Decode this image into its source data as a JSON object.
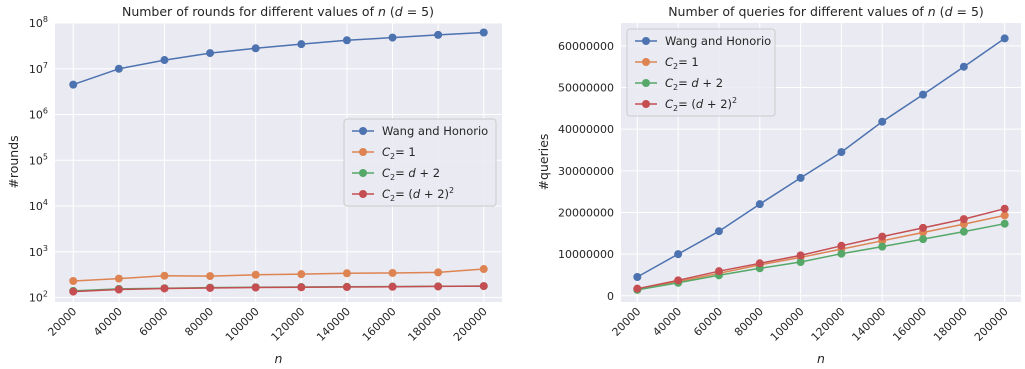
{
  "chart_data": [
    {
      "type": "line",
      "title": "Number of rounds for different values of n (d = 5)",
      "xlabel": "n",
      "ylabel": "#rounds",
      "yscale": "log",
      "ylim": [
        80,
        100000000
      ],
      "xlim": [
        12000,
        208000
      ],
      "x": [
        20000,
        40000,
        60000,
        80000,
        100000,
        120000,
        140000,
        160000,
        180000,
        200000
      ],
      "x_tick_labels": [
        "20000",
        "40000",
        "60000",
        "80000",
        "100000",
        "120000",
        "140000",
        "160000",
        "180000",
        "200000"
      ],
      "y_ticks": [
        {
          "value": 100,
          "base": "10",
          "exp": "2"
        },
        {
          "value": 1000,
          "base": "10",
          "exp": "3"
        },
        {
          "value": 10000,
          "base": "10",
          "exp": "4"
        },
        {
          "value": 100000,
          "base": "10",
          "exp": "5"
        },
        {
          "value": 1000000,
          "base": "10",
          "exp": "6"
        },
        {
          "value": 10000000,
          "base": "10",
          "exp": "7"
        },
        {
          "value": 100000000,
          "base": "10",
          "exp": "8"
        }
      ],
      "grid": true,
      "legend_position": "center-right",
      "series": [
        {
          "name": "Wang and Honorio",
          "color": "#4c72b0",
          "values": [
            4500000,
            10000000,
            15500000,
            22000000,
            28000000,
            34500000,
            42000000,
            48000000,
            55000000,
            62000000
          ]
        },
        {
          "name": "C2 = 1",
          "color": "#dd8452",
          "values": [
            230,
            260,
            300,
            295,
            315,
            325,
            340,
            345,
            355,
            420
          ]
        },
        {
          "name": "C2 = d + 2",
          "color": "#55a868",
          "values": [
            140,
            155,
            160,
            165,
            168,
            170,
            172,
            174,
            176,
            178
          ]
        },
        {
          "name": "C2 = (d + 2)^2",
          "color": "#c44e52",
          "values": [
            135,
            150,
            158,
            162,
            166,
            168,
            170,
            172,
            175,
            178
          ]
        }
      ]
    },
    {
      "type": "line",
      "title": "Number of queries for different values of n (d = 5)",
      "xlabel": "n",
      "ylabel": "#queries",
      "yscale": "linear",
      "ylim": [
        -1500000,
        65500000
      ],
      "xlim": [
        12000,
        208000
      ],
      "x": [
        20000,
        40000,
        60000,
        80000,
        100000,
        120000,
        140000,
        160000,
        180000,
        200000
      ],
      "x_tick_labels": [
        "20000",
        "40000",
        "60000",
        "80000",
        "100000",
        "120000",
        "140000",
        "160000",
        "180000",
        "200000"
      ],
      "y_ticks": [
        {
          "value": 0,
          "label": "0"
        },
        {
          "value": 10000000,
          "label": "10000000"
        },
        {
          "value": 20000000,
          "label": "20000000"
        },
        {
          "value": 30000000,
          "label": "30000000"
        },
        {
          "value": 40000000,
          "label": "40000000"
        },
        {
          "value": 50000000,
          "label": "50000000"
        },
        {
          "value": 60000000,
          "label": "60000000"
        }
      ],
      "grid": true,
      "legend_position": "top-left",
      "series": [
        {
          "name": "Wang and Honorio",
          "color": "#4c72b0",
          "values": [
            4500000,
            10000000,
            15500000,
            22000000,
            28300000,
            34500000,
            41800000,
            48300000,
            55000000,
            61800000
          ]
        },
        {
          "name": "C2 = 1",
          "color": "#dd8452",
          "values": [
            1600000,
            3400000,
            5400000,
            7400000,
            9200000,
            11200000,
            13200000,
            15200000,
            17200000,
            19300000
          ]
        },
        {
          "name": "C2 = d + 2",
          "color": "#55a868",
          "values": [
            1400000,
            3100000,
            4900000,
            6600000,
            8100000,
            10100000,
            11800000,
            13600000,
            15400000,
            17300000
          ]
        },
        {
          "name": "C2 = (d + 2)^2",
          "color": "#c44e52",
          "values": [
            1700000,
            3700000,
            5900000,
            7800000,
            9700000,
            12000000,
            14200000,
            16300000,
            18400000,
            20900000
          ]
        }
      ]
    }
  ]
}
